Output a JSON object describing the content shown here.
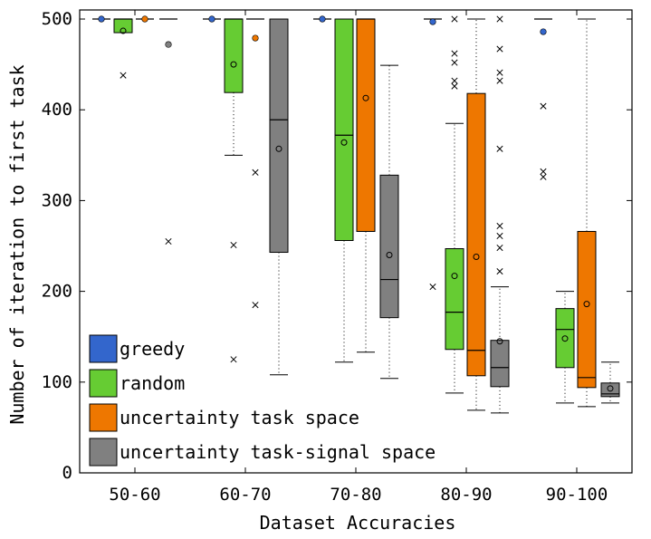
{
  "chart_data": {
    "type": "box",
    "title": "",
    "xlabel": "Dataset Accuracies",
    "ylabel": "Number of iteration to first task",
    "ylim": [
      0,
      510
    ],
    "yticks": [
      0,
      100,
      200,
      300,
      400,
      500
    ],
    "categories": [
      "50-60",
      "60-70",
      "70-80",
      "80-90",
      "90-100"
    ],
    "legend_position": "bottom-left",
    "series": [
      {
        "name": "greedy",
        "color": "#3366cc",
        "boxes": [
          {
            "category": "50-60",
            "q1": 500,
            "median": 500,
            "q3": 500,
            "whisker_low": 500,
            "whisker_high": 500,
            "mean": 500,
            "outliers": []
          },
          {
            "category": "60-70",
            "q1": 500,
            "median": 500,
            "q3": 500,
            "whisker_low": 500,
            "whisker_high": 500,
            "mean": 500,
            "outliers": []
          },
          {
            "category": "70-80",
            "q1": 500,
            "median": 500,
            "q3": 500,
            "whisker_low": 500,
            "whisker_high": 500,
            "mean": 500,
            "outliers": []
          },
          {
            "category": "80-90",
            "q1": 500,
            "median": 500,
            "q3": 500,
            "whisker_low": 500,
            "whisker_high": 500,
            "mean": 497,
            "outliers": [
              205
            ]
          },
          {
            "category": "90-100",
            "q1": 500,
            "median": 500,
            "q3": 500,
            "whisker_low": 500,
            "whisker_high": 500,
            "mean": 486,
            "outliers": [
              404,
              332,
              326
            ]
          }
        ]
      },
      {
        "name": "random",
        "color": "#66cc33",
        "boxes": [
          {
            "category": "50-60",
            "q1": 485,
            "median": 500,
            "q3": 500,
            "whisker_low": 485,
            "whisker_high": 500,
            "mean": 487,
            "outliers": [
              438
            ]
          },
          {
            "category": "60-70",
            "q1": 419,
            "median": 500,
            "q3": 500,
            "whisker_low": 350,
            "whisker_high": 500,
            "mean": 450,
            "outliers": [
              251,
              125
            ]
          },
          {
            "category": "70-80",
            "q1": 256,
            "median": 372,
            "q3": 500,
            "whisker_low": 122,
            "whisker_high": 500,
            "mean": 364,
            "outliers": []
          },
          {
            "category": "80-90",
            "q1": 136,
            "median": 177,
            "q3": 247,
            "whisker_low": 88,
            "whisker_high": 385,
            "mean": 217,
            "outliers": [
              432,
              426,
              452,
              462,
              500
            ]
          },
          {
            "category": "90-100",
            "q1": 116,
            "median": 158,
            "q3": 181,
            "whisker_low": 77,
            "whisker_high": 200,
            "mean": 148,
            "outliers": []
          }
        ]
      },
      {
        "name": "uncertainty task space",
        "color": "#ee7700",
        "boxes": [
          {
            "category": "50-60",
            "q1": 500,
            "median": 500,
            "q3": 500,
            "whisker_low": 500,
            "whisker_high": 500,
            "mean": 500,
            "outliers": []
          },
          {
            "category": "60-70",
            "q1": 500,
            "median": 500,
            "q3": 500,
            "whisker_low": 500,
            "whisker_high": 500,
            "mean": 479,
            "outliers": [
              331,
              185
            ]
          },
          {
            "category": "70-80",
            "q1": 266,
            "median": 500,
            "q3": 500,
            "whisker_low": 133,
            "whisker_high": 500,
            "mean": 413,
            "outliers": []
          },
          {
            "category": "80-90",
            "q1": 107,
            "median": 135,
            "q3": 418,
            "whisker_low": 69,
            "whisker_high": 500,
            "mean": 238,
            "outliers": []
          },
          {
            "category": "90-100",
            "q1": 94,
            "median": 105,
            "q3": 266,
            "whisker_low": 73,
            "whisker_high": 500,
            "mean": 186,
            "outliers": []
          }
        ]
      },
      {
        "name": "uncertainty task-signal space",
        "color": "#808080",
        "boxes": [
          {
            "category": "50-60",
            "q1": 500,
            "median": 500,
            "q3": 500,
            "whisker_low": 500,
            "whisker_high": 500,
            "mean": 472,
            "outliers": [
              255
            ]
          },
          {
            "category": "60-70",
            "q1": 243,
            "median": 389,
            "q3": 500,
            "whisker_low": 108,
            "whisker_high": 500,
            "mean": 357,
            "outliers": []
          },
          {
            "category": "70-80",
            "q1": 171,
            "median": 213,
            "q3": 328,
            "whisker_low": 104,
            "whisker_high": 449,
            "mean": 240,
            "outliers": []
          },
          {
            "category": "80-90",
            "q1": 95,
            "median": 116,
            "q3": 146,
            "whisker_low": 66,
            "whisker_high": 205,
            "mean": 145,
            "outliers": [
              222,
              248,
              261,
              272,
              357,
              432,
              441,
              467,
              500
            ]
          },
          {
            "category": "90-100",
            "q1": 84,
            "median": 87,
            "q3": 99,
            "whisker_low": 77,
            "whisker_high": 122,
            "mean": 93,
            "outliers": []
          }
        ]
      }
    ]
  }
}
